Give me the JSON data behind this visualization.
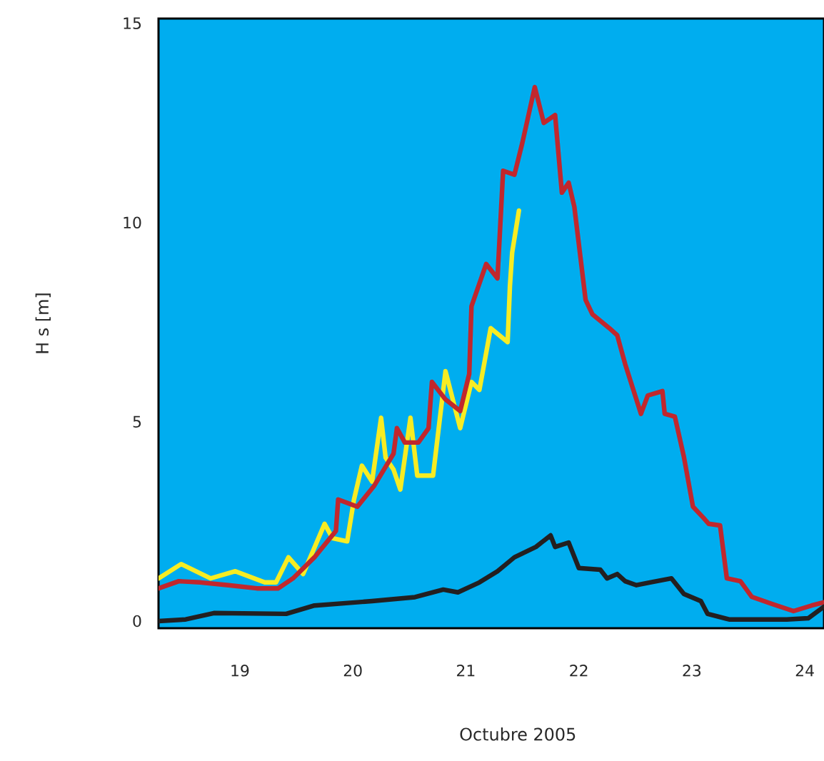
{
  "chart_data": {
    "type": "line",
    "xlabel": "Octubre 2005",
    "ylabel": "H s [m]",
    "xlim": [
      18.28,
      24.17
    ],
    "ylim": [
      -0.18,
      15.12
    ],
    "xticks": [
      19,
      20,
      21,
      22,
      23,
      24
    ],
    "yticks": [
      0,
      5,
      10,
      15
    ],
    "marker": "none",
    "line_style": "solid",
    "series": [
      {
        "color": "#f7ec23",
        "x": [
          18.28,
          18.48,
          18.74,
          18.96,
          19.22,
          19.32,
          19.43,
          19.56,
          19.75,
          19.82,
          19.95,
          20.01,
          20.08,
          20.17,
          20.25,
          20.29,
          20.36,
          20.42,
          20.51,
          20.57,
          20.71,
          20.82,
          20.95,
          21.05,
          21.12,
          21.22,
          21.37,
          21.39,
          21.41,
          21.47
        ],
        "values": [
          1.07,
          1.43,
          1.07,
          1.25,
          0.97,
          0.97,
          1.6,
          1.18,
          2.44,
          2.08,
          2.0,
          3.05,
          3.9,
          3.5,
          5.1,
          4.1,
          3.8,
          3.3,
          5.1,
          3.65,
          3.65,
          6.27,
          4.84,
          6.0,
          5.8,
          7.35,
          7.0,
          8.4,
          9.25,
          10.3
        ]
      },
      {
        "color": "#c1272d",
        "x": [
          18.28,
          18.46,
          18.65,
          18.9,
          19.15,
          19.34,
          19.47,
          19.66,
          19.85,
          19.87,
          20.04,
          20.19,
          20.36,
          20.39,
          20.46,
          20.58,
          20.67,
          20.7,
          20.82,
          20.95,
          21.03,
          21.05,
          21.18,
          21.28,
          21.33,
          21.43,
          21.5,
          21.61,
          21.69,
          21.79,
          21.85,
          21.91,
          21.96,
          22.06,
          22.12,
          22.27,
          22.34,
          22.41,
          22.55,
          22.61,
          22.74,
          22.76,
          22.85,
          22.93,
          23.01,
          23.1,
          23.15,
          23.25,
          23.31,
          23.43,
          23.53,
          23.71,
          23.9,
          24.06,
          24.17
        ],
        "values": [
          0.82,
          1.0,
          0.97,
          0.9,
          0.82,
          0.82,
          1.07,
          1.6,
          2.26,
          3.05,
          2.87,
          3.4,
          4.2,
          4.84,
          4.48,
          4.48,
          4.84,
          6.0,
          5.56,
          5.27,
          6.2,
          7.9,
          8.96,
          8.6,
          11.3,
          11.2,
          12.0,
          13.4,
          12.5,
          12.7,
          10.75,
          11.0,
          10.4,
          8.06,
          7.7,
          7.35,
          7.17,
          6.45,
          5.2,
          5.66,
          5.77,
          5.2,
          5.13,
          4.12,
          2.87,
          2.6,
          2.44,
          2.4,
          1.07,
          1.0,
          0.61,
          0.43,
          0.25,
          0.39,
          0.47
        ]
      },
      {
        "color": "#231f20",
        "x": [
          18.28,
          18.52,
          18.77,
          19.41,
          19.66,
          20.17,
          20.55,
          20.8,
          20.93,
          21.12,
          21.28,
          21.43,
          21.62,
          21.75,
          21.79,
          21.91,
          22.0,
          22.19,
          22.25,
          22.34,
          22.41,
          22.51,
          22.63,
          22.82,
          22.93,
          23.08,
          23.14,
          23.33,
          23.84,
          24.03,
          24.17
        ],
        "values": [
          0.0,
          0.04,
          0.2,
          0.18,
          0.39,
          0.5,
          0.6,
          0.79,
          0.72,
          0.97,
          1.25,
          1.6,
          1.86,
          2.15,
          1.86,
          1.97,
          1.33,
          1.29,
          1.07,
          1.18,
          1.0,
          0.9,
          0.97,
          1.07,
          0.68,
          0.5,
          0.18,
          0.04,
          0.04,
          0.07,
          0.36
        ]
      }
    ]
  }
}
